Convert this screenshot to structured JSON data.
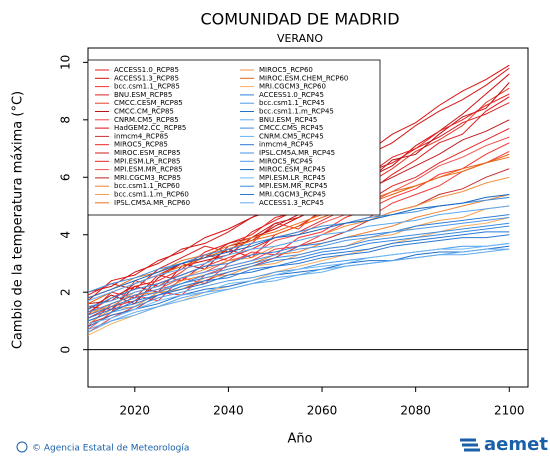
{
  "chart_data": {
    "type": "line",
    "title": "COMUNIDAD DE MADRID",
    "subtitle": "VERANO",
    "x_label": "Año",
    "y_label": "Cambio de la temperatura máxima (°C)",
    "footer": "© Agencia Estatal de Meteorología",
    "logo": "aemet",
    "xlim": [
      2010,
      2104
    ],
    "ylim": [
      -1.3,
      10.5
    ],
    "xticks": [
      2020,
      2040,
      2060,
      2080,
      2100
    ],
    "yticks": [
      0,
      2,
      4,
      6,
      8,
      10
    ],
    "hline": 0,
    "x": [
      2010,
      2015,
      2020,
      2025,
      2030,
      2035,
      2040,
      2045,
      2050,
      2055,
      2060,
      2065,
      2070,
      2075,
      2080,
      2085,
      2090,
      2095,
      2100
    ],
    "series": [
      {
        "name": "ACCESS1.0_RCP85",
        "color": "#e41a1c",
        "values": [
          1.2,
          2.0,
          1.8,
          2.6,
          2.4,
          3.0,
          3.5,
          3.2,
          4.0,
          4.3,
          4.8,
          5.2,
          5.5,
          6.1,
          6.6,
          7.2,
          7.5,
          8.3,
          8.8
        ]
      },
      {
        "name": "ACCESS1.3_RCP85",
        "color": "#cc1010",
        "values": [
          1.5,
          1.4,
          2.2,
          2.0,
          2.9,
          3.1,
          3.3,
          3.9,
          4.2,
          4.6,
          5.0,
          5.6,
          6.0,
          6.4,
          7.1,
          7.6,
          8.2,
          8.9,
          9.6
        ]
      },
      {
        "name": "bcc.csm1.1_RCP85",
        "color": "#ff3030",
        "values": [
          0.8,
          1.6,
          1.9,
          1.7,
          2.5,
          2.3,
          3.0,
          3.4,
          3.3,
          3.9,
          4.1,
          4.6,
          4.9,
          5.3,
          5.6,
          6.1,
          6.3,
          6.8,
          7.2
        ]
      },
      {
        "name": "BNU.ESM_RCP85",
        "color": "#d62020",
        "values": [
          1.9,
          2.3,
          2.1,
          2.8,
          3.2,
          3.6,
          3.4,
          4.1,
          4.5,
          4.9,
          5.3,
          5.5,
          6.2,
          6.5,
          7.0,
          7.4,
          7.9,
          8.2,
          8.6
        ]
      },
      {
        "name": "CMCC.CESM_RCP85",
        "color": "#e83a2a",
        "values": [
          1.0,
          1.3,
          2.4,
          2.2,
          2.7,
          3.3,
          3.1,
          3.7,
          4.4,
          4.2,
          4.9,
          5.4,
          5.8,
          6.3,
          6.9,
          7.3,
          7.8,
          8.6,
          9.1
        ]
      },
      {
        "name": "CMCC.CM_RCP85",
        "color": "#b81414",
        "values": [
          1.4,
          1.9,
          1.6,
          2.5,
          3.0,
          2.8,
          3.6,
          3.8,
          4.3,
          4.7,
          5.1,
          5.3,
          5.9,
          6.6,
          6.8,
          7.5,
          8.1,
          8.4,
          9.3
        ]
      },
      {
        "name": "CNRM.CM5_RCP85",
        "color": "#f04040",
        "values": [
          0.6,
          1.1,
          1.5,
          2.0,
          1.9,
          2.6,
          2.9,
          3.1,
          3.5,
          3.6,
          4.0,
          4.4,
          4.6,
          5.1,
          5.4,
          5.7,
          6.2,
          6.5,
          6.9
        ]
      },
      {
        "name": "HadGEM2.CC_RCP85",
        "color": "#dd1111",
        "values": [
          1.7,
          2.4,
          2.6,
          3.1,
          3.4,
          3.9,
          4.2,
          4.6,
          5.0,
          5.5,
          5.9,
          6.4,
          6.9,
          7.5,
          7.9,
          8.5,
          9.0,
          9.4,
          9.9
        ]
      },
      {
        "name": "inmcm4_RCP85",
        "color": "#c83030",
        "values": [
          0.9,
          1.2,
          1.4,
          1.9,
          2.1,
          2.4,
          2.7,
          2.9,
          3.2,
          3.6,
          3.8,
          4.1,
          4.5,
          4.8,
          5.0,
          5.4,
          5.6,
          6.0,
          6.3
        ]
      },
      {
        "name": "MIROC5_RCP85",
        "color": "#ee2222",
        "values": [
          1.3,
          1.8,
          2.2,
          2.4,
          2.8,
          3.4,
          3.7,
          4.0,
          4.6,
          4.8,
          5.3,
          5.7,
          6.1,
          6.7,
          7.0,
          7.6,
          8.0,
          8.5,
          8.9
        ]
      },
      {
        "name": "MIROC.ESM_RCP85",
        "color": "#d01a1a",
        "values": [
          2.0,
          2.2,
          2.7,
          3.0,
          3.5,
          3.7,
          4.1,
          4.6,
          4.9,
          5.4,
          5.8,
          6.3,
          6.8,
          7.2,
          7.8,
          8.3,
          8.7,
          9.2,
          9.8
        ]
      },
      {
        "name": "MPI.ESM.LR_RCP85",
        "color": "#e02828",
        "values": [
          1.1,
          1.5,
          1.7,
          2.3,
          2.6,
          2.9,
          3.2,
          3.5,
          3.9,
          4.1,
          4.5,
          4.9,
          5.2,
          5.7,
          6.0,
          6.5,
          6.9,
          7.3,
          7.7
        ]
      },
      {
        "name": "MPI.ESM.MR_RCP85",
        "color": "#f25050",
        "values": [
          0.7,
          1.3,
          1.9,
          2.1,
          2.5,
          2.7,
          3.1,
          3.3,
          3.8,
          4.0,
          4.4,
          4.7,
          5.1,
          5.5,
          5.9,
          6.4,
          6.7,
          7.1,
          7.4
        ]
      },
      {
        "name": "MRI.CGCM3_RCP85",
        "color": "#c02020",
        "values": [
          1.6,
          1.7,
          2.3,
          2.6,
          3.0,
          3.2,
          3.7,
          3.9,
          4.4,
          4.6,
          5.0,
          5.3,
          5.6,
          6.0,
          6.4,
          6.8,
          7.3,
          7.6,
          8.0
        ]
      },
      {
        "name": "bcc.csm1.1_RCP60",
        "color": "#f08030",
        "values": [
          1.2,
          1.6,
          1.9,
          2.0,
          2.4,
          2.6,
          2.8,
          3.0,
          3.3,
          3.4,
          3.7,
          3.9,
          4.1,
          4.3,
          4.6,
          4.8,
          5.0,
          5.2,
          5.4
        ]
      },
      {
        "name": "bcc.csm1.1.m_RCP60",
        "color": "#f5a050",
        "values": [
          0.9,
          1.4,
          1.5,
          2.0,
          2.1,
          2.5,
          2.6,
          2.9,
          3.0,
          3.3,
          3.5,
          3.6,
          3.9,
          4.0,
          4.3,
          4.5,
          4.6,
          4.9,
          5.0
        ]
      },
      {
        "name": "IPSL.CM5A.MR_RCP60",
        "color": "#e87020",
        "values": [
          1.8,
          2.1,
          2.5,
          2.7,
          3.1,
          3.3,
          3.6,
          3.9,
          4.1,
          4.4,
          4.7,
          4.9,
          5.2,
          5.5,
          5.7,
          6.0,
          6.2,
          6.5,
          6.7
        ]
      },
      {
        "name": "MIROC5_RCP60",
        "color": "#f09040",
        "values": [
          1.3,
          1.5,
          2.0,
          2.2,
          2.5,
          2.8,
          3.1,
          3.2,
          3.6,
          3.8,
          4.0,
          4.3,
          4.5,
          4.8,
          5.0,
          5.3,
          5.5,
          5.8,
          6.0
        ]
      },
      {
        "name": "MIROC.ESM.CHEM_RCP60",
        "color": "#e86010",
        "values": [
          1.6,
          2.0,
          2.3,
          2.6,
          2.9,
          3.2,
          3.5,
          3.8,
          4.0,
          4.3,
          4.6,
          4.9,
          5.1,
          5.4,
          5.7,
          6.0,
          6.3,
          6.5,
          6.8
        ]
      },
      {
        "name": "MRI.CGCM3_RCP60",
        "color": "#f8b060",
        "values": [
          0.5,
          0.9,
          1.2,
          1.5,
          1.7,
          2.0,
          2.2,
          2.4,
          2.7,
          2.9,
          3.1,
          3.3,
          3.5,
          3.7,
          3.9,
          4.1,
          4.3,
          4.4,
          4.6
        ]
      },
      {
        "name": "ACCESS1.0_RCP45",
        "color": "#3080d8",
        "values": [
          1.4,
          1.8,
          2.1,
          2.3,
          2.6,
          2.9,
          3.0,
          3.3,
          3.4,
          3.6,
          3.7,
          3.9,
          4.0,
          4.1,
          4.3,
          4.4,
          4.5,
          4.6,
          4.7
        ]
      },
      {
        "name": "bcc.csm1.1_RCP45",
        "color": "#4a9ae8",
        "values": [
          1.0,
          1.3,
          1.5,
          1.8,
          2.0,
          2.2,
          2.4,
          2.5,
          2.7,
          2.8,
          3.0,
          3.1,
          3.2,
          3.3,
          3.4,
          3.5,
          3.6,
          3.6,
          3.7
        ]
      },
      {
        "name": "bcc.csm1.1.m_RCP45",
        "color": "#2070c8",
        "values": [
          0.8,
          1.2,
          1.4,
          1.6,
          1.9,
          2.1,
          2.2,
          2.4,
          2.6,
          2.7,
          2.8,
          3.0,
          3.1,
          3.1,
          3.3,
          3.4,
          3.4,
          3.5,
          3.6
        ]
      },
      {
        "name": "BNU.ESM_RCP45",
        "color": "#5aa8f0",
        "values": [
          1.7,
          2.0,
          2.3,
          2.6,
          2.8,
          3.0,
          3.3,
          3.5,
          3.6,
          3.8,
          4.0,
          4.1,
          4.3,
          4.4,
          4.5,
          4.7,
          4.8,
          4.9,
          5.0
        ]
      },
      {
        "name": "CMCC.CMS_RCP45",
        "color": "#3888e0",
        "values": [
          1.2,
          1.5,
          1.8,
          2.0,
          2.3,
          2.5,
          2.7,
          2.9,
          3.1,
          3.2,
          3.4,
          3.5,
          3.7,
          3.8,
          3.9,
          4.0,
          4.1,
          4.2,
          4.3
        ]
      },
      {
        "name": "CNRM.CM5_RCP45",
        "color": "#68b0f0",
        "values": [
          0.6,
          1.0,
          1.2,
          1.5,
          1.7,
          1.9,
          2.1,
          2.3,
          2.4,
          2.6,
          2.7,
          2.9,
          3.0,
          3.1,
          3.2,
          3.3,
          3.4,
          3.5,
          3.5
        ]
      },
      {
        "name": "inmcm4_RCP45",
        "color": "#2a78d0",
        "values": [
          1.1,
          1.4,
          1.6,
          1.9,
          2.1,
          2.3,
          2.6,
          2.7,
          2.9,
          3.0,
          3.2,
          3.3,
          3.4,
          3.6,
          3.7,
          3.8,
          3.9,
          3.9,
          4.0
        ]
      },
      {
        "name": "IPSL.CM5A.MR_RCP45",
        "color": "#4090e0",
        "values": [
          2.0,
          2.3,
          2.5,
          2.8,
          3.0,
          3.3,
          3.5,
          3.7,
          3.9,
          4.1,
          4.3,
          4.4,
          4.6,
          4.7,
          4.8,
          5.0,
          5.1,
          5.2,
          5.3
        ]
      },
      {
        "name": "MIROC5_RCP45",
        "color": "#5098e8",
        "values": [
          1.5,
          1.7,
          2.0,
          2.2,
          2.5,
          2.7,
          2.9,
          3.1,
          3.3,
          3.5,
          3.6,
          3.8,
          3.9,
          4.1,
          4.2,
          4.3,
          4.4,
          4.5,
          4.6
        ]
      },
      {
        "name": "MIROC.ESM_RCP45",
        "color": "#1868c0",
        "values": [
          1.8,
          2.1,
          2.4,
          2.7,
          3.0,
          3.2,
          3.4,
          3.6,
          3.9,
          4.0,
          4.2,
          4.4,
          4.5,
          4.7,
          4.9,
          5.0,
          5.1,
          5.3,
          5.4
        ]
      },
      {
        "name": "MPI.ESM.LR_RCP45",
        "color": "#70b8f8",
        "values": [
          0.9,
          1.1,
          1.4,
          1.7,
          1.9,
          2.0,
          2.3,
          2.4,
          2.6,
          2.8,
          2.9,
          3.0,
          3.2,
          3.3,
          3.4,
          3.5,
          3.5,
          3.6,
          3.7
        ]
      },
      {
        "name": "MPI.ESM.MR_RCP45",
        "color": "#3c8ce0",
        "values": [
          1.3,
          1.6,
          1.9,
          2.1,
          2.3,
          2.6,
          2.8,
          3.0,
          3.2,
          3.3,
          3.5,
          3.6,
          3.8,
          3.9,
          4.0,
          4.1,
          4.2,
          4.3,
          4.4
        ]
      },
      {
        "name": "MRI.CGCM3_RCP45",
        "color": "#2878d8",
        "values": [
          1.0,
          1.3,
          1.7,
          1.9,
          2.2,
          2.4,
          2.5,
          2.8,
          2.9,
          3.1,
          3.3,
          3.4,
          3.5,
          3.7,
          3.8,
          3.9,
          4.0,
          4.1,
          4.1
        ]
      },
      {
        "name": "ACCESS1.3_RCP45",
        "color": "#60a8ee",
        "values": [
          0.7,
          1.0,
          1.3,
          1.5,
          1.8,
          2.0,
          2.1,
          2.3,
          2.5,
          2.6,
          2.8,
          2.9,
          3.0,
          3.1,
          3.2,
          3.3,
          3.3,
          3.4,
          3.5
        ]
      }
    ]
  }
}
